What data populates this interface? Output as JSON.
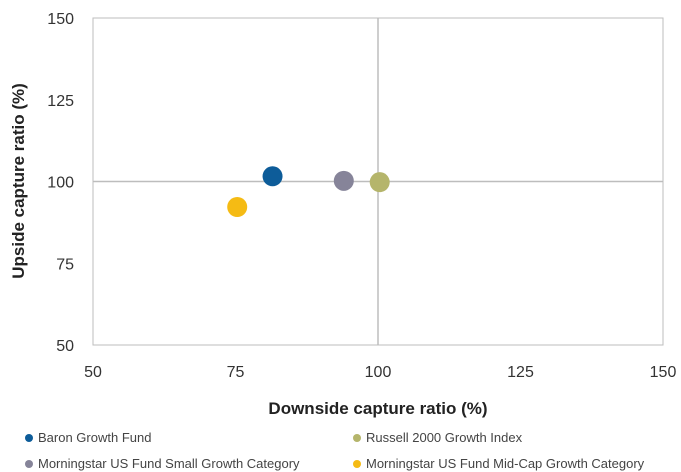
{
  "chart_data": {
    "type": "scatter",
    "xlabel": "Downside capture ratio  (%)",
    "ylabel": "Upside capture ratio  (%)",
    "xlim": [
      50,
      150
    ],
    "ylim": [
      50,
      150
    ],
    "xticks": [
      "50",
      "75",
      "100",
      "125",
      "150"
    ],
    "yticks": [
      "150",
      "125",
      "100",
      "75",
      "50"
    ],
    "reference_lines": {
      "x": 100,
      "y": 100
    },
    "grid": false,
    "legend_position": "bottom",
    "series": [
      {
        "name": "Baron Growth Fund",
        "color": "#0d5c99",
        "x": 81.5,
        "y": 101.6
      },
      {
        "name": "Russell 2000 Growth Index",
        "color": "#b5b56b",
        "x": 100.3,
        "y": 99.8
      },
      {
        "name": "Morningstar US Fund Small Growth Category",
        "color": "#868499",
        "x": 94.0,
        "y": 100.2
      },
      {
        "name": "Morningstar US Fund Mid-Cap Growth Category",
        "color": "#f5bb14",
        "x": 75.3,
        "y": 92.2
      }
    ]
  }
}
